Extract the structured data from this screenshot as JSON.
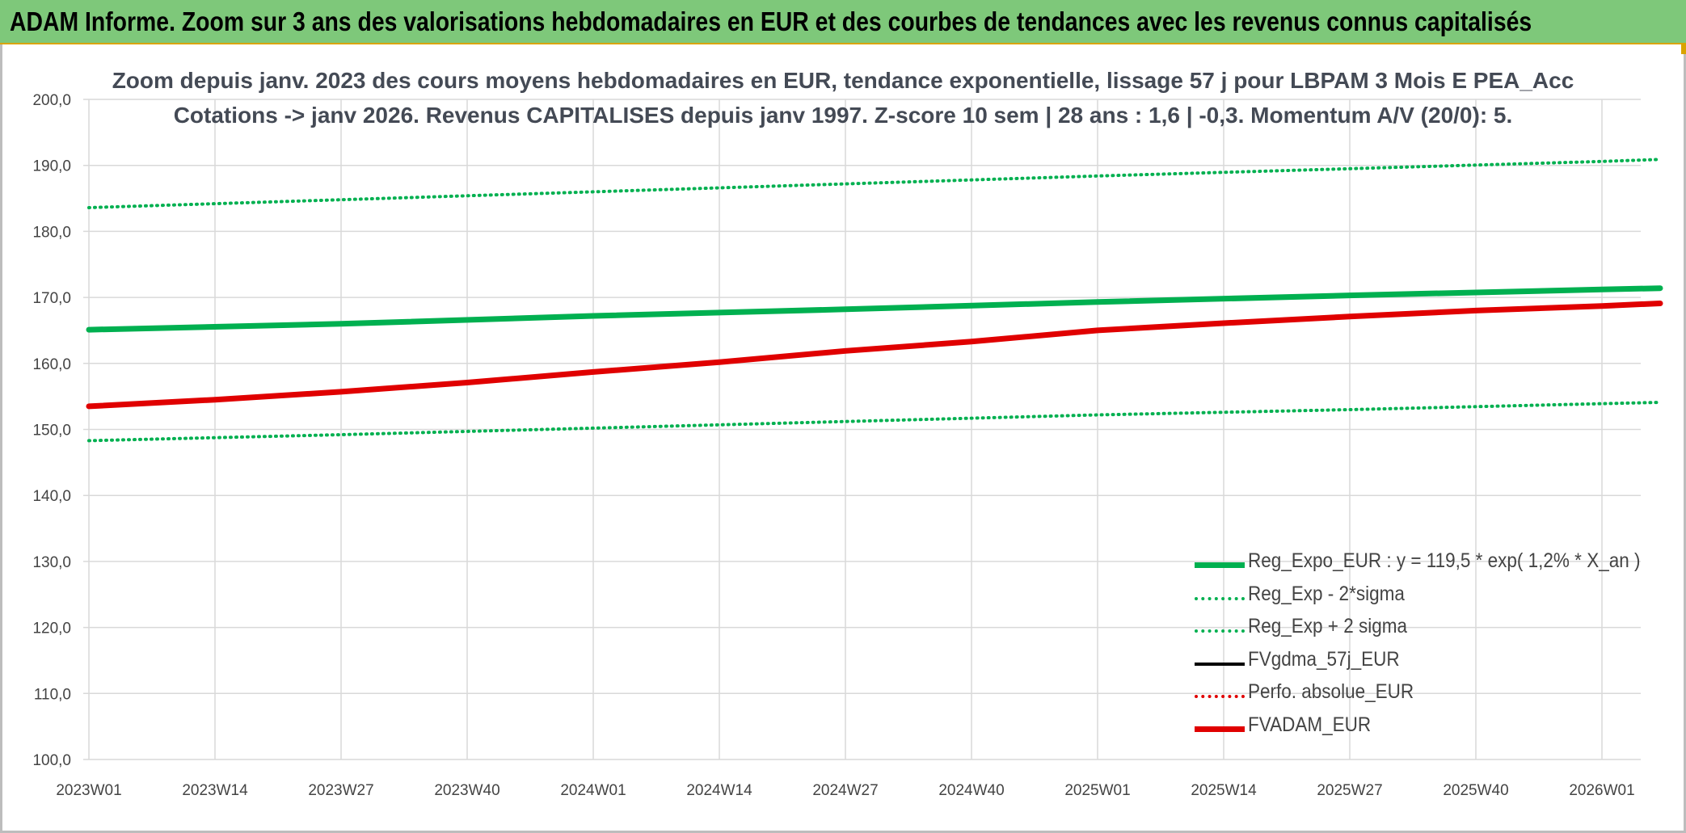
{
  "header": {
    "title": "ADAM Informe. Zoom sur 3 ans des valorisations hebdomadaires en EUR et des courbes de tendances avec les revenus connus capitalisés"
  },
  "chart_data": {
    "type": "line",
    "title_line1": "Zoom depuis janv. 2023 des cours moyens hebdomadaires en EUR, tendance exponentielle, lissage 57 j pour LBPAM 3 Mois E PEA_Acc",
    "title_line2": "Cotations -> janv 2026. Revenus CAPITALISES depuis janv 1997. Z-score 10 sem | 28 ans : 1,6 | -0,3. Momentum A/V (20/0): 5.",
    "x_tick_labels": [
      "2023W01",
      "2023W14",
      "2023W27",
      "2023W40",
      "2024W01",
      "2024W14",
      "2024W27",
      "2024W40",
      "2025W01",
      "2025W14",
      "2025W27",
      "2025W40",
      "2026W01"
    ],
    "y_tick_labels": [
      "100,0",
      "110,0",
      "120,0",
      "130,0",
      "140,0",
      "150,0",
      "160,0",
      "170,0",
      "180,0",
      "190,0",
      "200,0"
    ],
    "ylim": [
      100,
      200
    ],
    "x_range_weeks": [
      0,
      162
    ],
    "grid": true,
    "legend_position": "bottom-right",
    "series": [
      {
        "name": "Reg_Expo_EUR : y = 119,5 * exp( 1,2% *  X_an )",
        "color": "#00b050",
        "style": "solid-thick",
        "x_weeks": [
          0,
          26,
          52,
          78,
          104,
          130,
          156,
          162
        ],
        "values": [
          165.1,
          166.0,
          167.2,
          168.2,
          169.3,
          170.3,
          171.2,
          171.4
        ]
      },
      {
        "name": "Reg_Exp - 2*sigma",
        "color": "#00b050",
        "style": "dotted",
        "x_weeks": [
          0,
          26,
          52,
          78,
          104,
          130,
          156,
          162
        ],
        "values": [
          148.3,
          149.2,
          150.2,
          151.2,
          152.2,
          153.0,
          153.9,
          154.1
        ]
      },
      {
        "name": "Reg_Exp + 2 sigma",
        "color": "#00b050",
        "style": "dotted",
        "x_weeks": [
          0,
          26,
          52,
          78,
          104,
          130,
          156,
          162
        ],
        "values": [
          183.6,
          184.8,
          186.0,
          187.2,
          188.4,
          189.5,
          190.6,
          190.9
        ]
      },
      {
        "name": "FVgdma_57j_EUR",
        "color": "#000000",
        "style": "solid",
        "x_weeks": [],
        "values": []
      },
      {
        "name": "Perfo. absolue_EUR",
        "color": "#e00000",
        "style": "dotted",
        "x_weeks": [],
        "values": []
      },
      {
        "name": "FVADAM_EUR",
        "color": "#e00000",
        "style": "solid-thick",
        "x_weeks": [
          0,
          13,
          26,
          39,
          52,
          65,
          78,
          91,
          104,
          117,
          130,
          143,
          156,
          162
        ],
        "values": [
          153.5,
          154.5,
          155.7,
          157.1,
          158.7,
          160.2,
          161.9,
          163.3,
          165.0,
          166.1,
          167.1,
          168.0,
          168.7,
          169.1
        ]
      }
    ]
  },
  "colors": {
    "banner_bg": "#7ec87a",
    "banner_border": "#d9a400",
    "grid": "#d9d9d9",
    "title_text": "#444a55"
  }
}
